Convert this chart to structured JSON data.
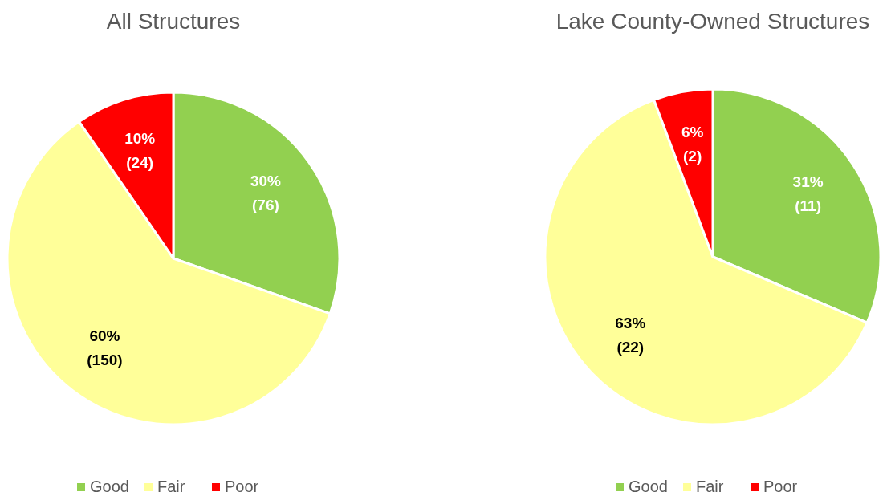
{
  "chart_data": [
    {
      "type": "pie",
      "title": "All Structures",
      "categories": [
        "Good",
        "Fair",
        "Poor"
      ],
      "values": [
        76,
        150,
        24
      ],
      "colors": [
        "#92d050",
        "#ffff99",
        "#ff0000"
      ],
      "value_labels": [
        "30%\n(76)",
        "60%\n(150)",
        "10%\n(24)"
      ],
      "legend": "bottom"
    },
    {
      "type": "pie",
      "title": "Lake County-Owned Structures",
      "categories": [
        "Good",
        "Fair",
        "Poor"
      ],
      "values": [
        11,
        22,
        2
      ],
      "colors": [
        "#92d050",
        "#ffff99",
        "#ff0000"
      ],
      "value_labels": [
        "31%\n(11)",
        "63%\n(22)",
        "6%\n(2)"
      ],
      "legend": "bottom"
    }
  ]
}
